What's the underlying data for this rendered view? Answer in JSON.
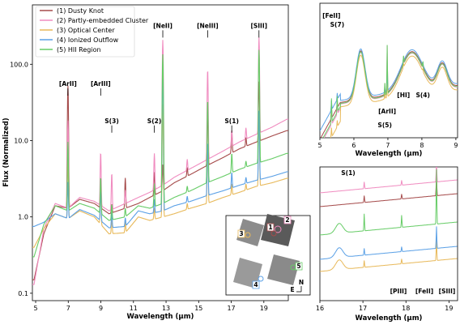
{
  "series_colors": [
    "#a54a4a",
    "#f08cc0",
    "#e8b95a",
    "#5aa0e6",
    "#66cc66"
  ],
  "chart_data": [
    {
      "type": "line",
      "panel": "main",
      "title": "",
      "xlabel": "Wavelength (μm)",
      "ylabel": "Flux (Normalized)",
      "xlim": [
        4.8,
        20.5
      ],
      "ylim": [
        0.08,
        600
      ],
      "yscale": "log",
      "xticks": [
        5,
        7,
        9,
        11,
        13,
        15,
        17,
        19
      ],
      "yticks": [
        {
          "v": 0.1,
          "label": "0.1"
        },
        {
          "v": 1,
          "label": "1.0"
        },
        {
          "v": 10,
          "label": "10.0"
        },
        {
          "v": 100,
          "label": "100.0"
        }
      ],
      "legend_position": "top-left",
      "series": [
        {
          "name": "(1) Dusty Knot",
          "x": [
            4.9,
            5.5,
            6.2,
            7.0,
            7.7,
            8.6,
            9.5,
            10.5,
            11.3,
            12.0,
            12.8,
            13.5,
            14.5,
            15.5,
            16.5,
            17.5,
            18.5,
            19.5,
            20.4
          ],
          "y": [
            0.15,
            0.6,
            1.4,
            1.3,
            1.7,
            1.5,
            1.1,
            1.3,
            1.5,
            1.8,
            2.2,
            2.8,
            3.6,
            4.7,
            6.0,
            7.8,
            9.5,
            11.5,
            13.5
          ]
        },
        {
          "name": "(2) Partly-embedded Cluster",
          "x": [
            4.9,
            5.5,
            6.2,
            7.0,
            7.7,
            8.6,
            9.5,
            10.5,
            11.3,
            12.0,
            12.8,
            13.5,
            14.5,
            15.5,
            16.5,
            17.5,
            18.5,
            19.5,
            20.4
          ],
          "y": [
            0.13,
            0.7,
            1.5,
            1.3,
            1.8,
            1.6,
            1.2,
            1.5,
            1.8,
            2.1,
            2.6,
            3.3,
            4.3,
            5.6,
            7.3,
            9.6,
            12.0,
            15.0,
            19.0
          ]
        },
        {
          "name": "(3) Optical Center",
          "x": [
            4.9,
            5.5,
            6.2,
            7.0,
            7.7,
            8.6,
            9.5,
            10.5,
            11.3,
            12.0,
            12.8,
            13.5,
            14.5,
            15.5,
            16.5,
            17.5,
            18.5,
            19.5,
            20.4
          ],
          "y": [
            0.4,
            0.7,
            1.1,
            0.95,
            1.2,
            1.0,
            0.6,
            0.62,
            1.0,
            0.9,
            1.0,
            1.1,
            1.3,
            1.5,
            1.8,
            2.1,
            2.5,
            2.8,
            3.2
          ]
        },
        {
          "name": "(4) Ionized Outflow",
          "x": [
            4.9,
            5.5,
            6.2,
            7.0,
            7.7,
            8.6,
            9.5,
            10.5,
            11.3,
            12.0,
            12.8,
            13.5,
            14.5,
            15.5,
            16.5,
            17.5,
            18.5,
            19.5,
            20.4
          ],
          "y": [
            0.75,
            0.85,
            1.1,
            0.95,
            1.25,
            1.05,
            0.72,
            0.75,
            1.2,
            1.1,
            1.2,
            1.4,
            1.6,
            1.9,
            2.2,
            2.6,
            3.0,
            3.4,
            3.9
          ]
        },
        {
          "name": "(5) HII Region",
          "x": [
            4.9,
            5.5,
            6.2,
            7.0,
            7.7,
            8.6,
            9.5,
            10.5,
            11.3,
            12.0,
            12.8,
            13.5,
            14.5,
            15.5,
            16.5,
            17.5,
            18.5,
            19.5,
            20.4
          ],
          "y": [
            0.3,
            0.8,
            1.4,
            1.2,
            1.5,
            1.3,
            0.9,
            1.0,
            1.4,
            1.3,
            1.5,
            1.8,
            2.2,
            2.8,
            3.4,
            4.2,
            5.0,
            5.8,
            6.8
          ]
        }
      ],
      "annotations": [
        {
          "label": "[NeII]",
          "x": 12.8,
          "y": 300
        },
        {
          "label": "[NeIII]",
          "x": 15.55,
          "y": 300
        },
        {
          "label": "[SIII]",
          "x": 18.7,
          "y": 300
        },
        {
          "label": "[ArII]",
          "x": 6.98,
          "y": 52
        },
        {
          "label": "[ArIII]",
          "x": 8.99,
          "y": 52
        },
        {
          "label": "S(3)",
          "x": 9.67,
          "y": 17
        },
        {
          "label": "S(2)",
          "x": 12.28,
          "y": 17
        },
        {
          "label": "S(1)",
          "x": 17.03,
          "y": 17
        }
      ],
      "inset": {
        "markers": [
          "1",
          "2",
          "3",
          "4",
          "5"
        ],
        "compass": [
          "N",
          "E"
        ]
      }
    },
    {
      "type": "line",
      "panel": "top-right",
      "xlabel": "Wavelength (μm)",
      "xlim": [
        5,
        9.05
      ],
      "xticks": [
        5,
        6,
        7,
        8,
        9
      ],
      "annotations": [
        {
          "label": "[FeII]",
          "x": 5.34
        },
        {
          "label": "S(7)",
          "x": 5.51
        },
        {
          "label": "[HI]",
          "x": 7.46
        },
        {
          "label": "S(4)",
          "x": 8.03
        },
        {
          "label": "[ArII]",
          "x": 6.98
        },
        {
          "label": "S(5)",
          "x": 6.91
        }
      ]
    },
    {
      "type": "line",
      "panel": "bottom-right",
      "xlabel": "Wavelength (μm)",
      "xlim": [
        16,
        19.2
      ],
      "xticks": [
        16,
        17,
        18,
        19
      ],
      "annotations": [
        {
          "label": "S(1)",
          "x": 17.03
        },
        {
          "label": "[PIII]",
          "x": 17.89
        },
        {
          "label": "[FeII]",
          "x": 17.94
        },
        {
          "label": "[SIII]",
          "x": 18.71
        }
      ]
    }
  ]
}
